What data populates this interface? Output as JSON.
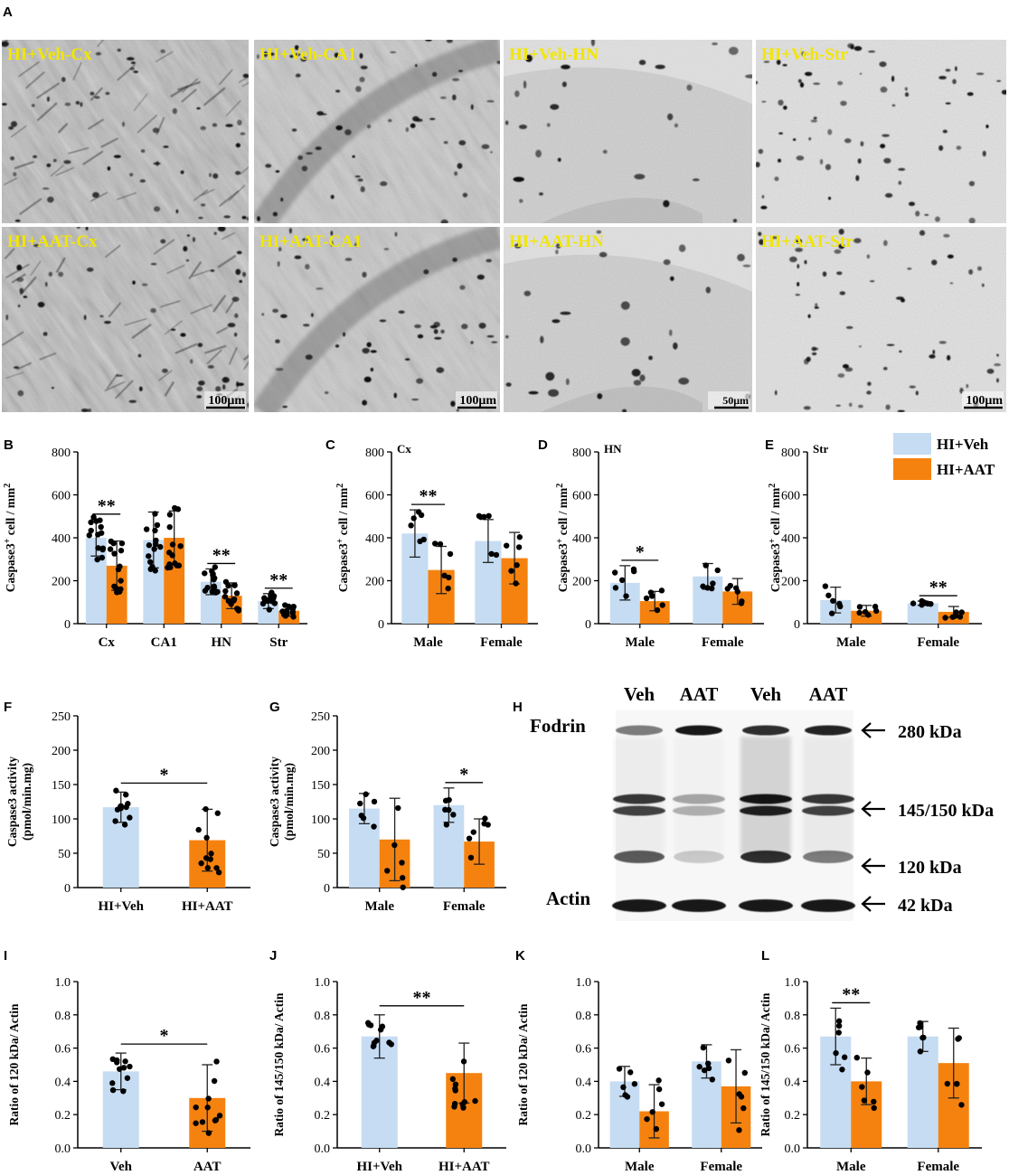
{
  "panel_labels": [
    "A",
    "B",
    "C",
    "D",
    "E",
    "F",
    "G",
    "H",
    "I",
    "J",
    "K",
    "L"
  ],
  "micrographs": [
    {
      "label": "HI+Veh-Cx",
      "scale": "",
      "style": "cx1"
    },
    {
      "label": "HI+Veh-CA1",
      "scale": "",
      "style": "ca1"
    },
    {
      "label": "HI+Veh-HN",
      "scale": "",
      "style": "hn1"
    },
    {
      "label": "HI+Veh-Str",
      "scale": "",
      "style": "str1"
    },
    {
      "label": "HI+AAT-Cx",
      "scale": "100μm",
      "style": "cx2"
    },
    {
      "label": "HI+AAT-CA1",
      "scale": "100μm",
      "style": "ca2"
    },
    {
      "label": "HI+AAT-HN",
      "scale": "50μm",
      "style": "hn2"
    },
    {
      "label": "HI+AAT-Str",
      "scale": "100μm",
      "style": "str2"
    }
  ],
  "colors": {
    "veh": "#c6dcf2",
    "aat": "#f5820f",
    "label_yellow": "#f2e600"
  },
  "legend": [
    {
      "label": "HI+Veh",
      "color": "#c6dcf2"
    },
    {
      "label": "HI+AAT",
      "color": "#f5820f"
    }
  ],
  "western_blot": {
    "panel": "H",
    "lanes": [
      "Veh",
      "AAT",
      "Veh",
      "AAT"
    ],
    "rows": [
      "Fodrin",
      "Actin"
    ],
    "bands": [
      "280 kDa",
      "145/150 kDa",
      "120 kDa",
      "42 kDa"
    ]
  },
  "chart_data": [
    {
      "panel": "B",
      "type": "bar",
      "ylabel": "Caspase3+ cell / mm2",
      "ylim": [
        0,
        800
      ],
      "yticks": [
        0,
        200,
        400,
        600,
        800
      ],
      "categories": [
        "Cx",
        "CA1",
        "HN",
        "Str"
      ],
      "series": [
        {
          "name": "HI+Veh",
          "values": [
            400,
            390,
            195,
            105
          ]
        },
        {
          "name": "HI+AAT",
          "values": [
            270,
            400,
            130,
            60
          ]
        }
      ],
      "errors": [
        [
          85,
          130,
          60,
          35
        ],
        [
          115,
          125,
          60,
          25
        ]
      ],
      "significance": [
        "**",
        "",
        "**",
        "**"
      ]
    },
    {
      "panel": "C",
      "type": "bar",
      "subtitle": "Cx",
      "ylabel": "Caspase3+ cell / mm2",
      "ylim": [
        0,
        800
      ],
      "yticks": [
        0,
        200,
        400,
        600,
        800
      ],
      "categories": [
        "Male",
        "Female"
      ],
      "series": [
        {
          "name": "HI+Veh",
          "values": [
            420,
            385
          ]
        },
        {
          "name": "HI+AAT",
          "values": [
            250,
            305
          ]
        }
      ],
      "errors": [
        [
          110,
          100
        ],
        [
          110,
          120
        ]
      ],
      "significance": [
        "**",
        ""
      ]
    },
    {
      "panel": "D",
      "type": "bar",
      "subtitle": "HN",
      "ylabel": "Caspase3+ cell / mm2",
      "ylim": [
        0,
        800
      ],
      "yticks": [
        0,
        200,
        400,
        600,
        800
      ],
      "categories": [
        "Male",
        "Female"
      ],
      "series": [
        {
          "name": "HI+Veh",
          "values": [
            190,
            220
          ]
        },
        {
          "name": "HI+AAT",
          "values": [
            105,
            150
          ]
        }
      ],
      "errors": [
        [
          80,
          60
        ],
        [
          45,
          60
        ]
      ],
      "significance": [
        "*",
        ""
      ]
    },
    {
      "panel": "E",
      "type": "bar",
      "subtitle": "Str",
      "ylabel": "Caspase3+ cell / mm2",
      "ylim": [
        0,
        800
      ],
      "yticks": [
        0,
        200,
        400,
        600,
        800
      ],
      "categories": [
        "Male",
        "Female"
      ],
      "series": [
        {
          "name": "HI+Veh",
          "values": [
            110,
            95
          ]
        },
        {
          "name": "HI+AAT",
          "values": [
            60,
            55
          ]
        }
      ],
      "errors": [
        [
          60,
          10
        ],
        [
          25,
          25
        ]
      ],
      "significance": [
        "",
        "**"
      ]
    },
    {
      "panel": "F",
      "type": "bar",
      "ylabel": "Caspase3 activity (pmol/min.mg)",
      "ylim": [
        0,
        250
      ],
      "yticks": [
        0,
        50,
        100,
        150,
        200,
        250
      ],
      "categories": [
        "HI+Veh",
        "HI+AAT"
      ],
      "grouped": false,
      "values": [
        117,
        69
      ],
      "errors": [
        22,
        45
      ],
      "significance": [
        "*"
      ]
    },
    {
      "panel": "G",
      "type": "bar",
      "ylabel": "Caspase3 activity (pmol/min.mg)",
      "ylim": [
        0,
        250
      ],
      "yticks": [
        0,
        50,
        100,
        150,
        200,
        250
      ],
      "categories": [
        "Male",
        "Female"
      ],
      "series": [
        {
          "name": "HI+Veh",
          "values": [
            115,
            120
          ]
        },
        {
          "name": "HI+AAT",
          "values": [
            70,
            67
          ]
        }
      ],
      "errors": [
        [
          22,
          25
        ],
        [
          60,
          33
        ]
      ],
      "significance": [
        "",
        "*"
      ]
    },
    {
      "panel": "I",
      "type": "bar",
      "ylabel": "Ratio of 120 kDa/ Actin",
      "ylim": [
        0,
        1.0
      ],
      "yticks": [
        "0.0",
        "0.2",
        "0.4",
        "0.6",
        "0.8",
        "1.0"
      ],
      "categories": [
        "Veh",
        "AAT"
      ],
      "grouped": false,
      "values": [
        0.46,
        0.3
      ],
      "errors": [
        0.11,
        0.2
      ],
      "significance": [
        "*"
      ]
    },
    {
      "panel": "J",
      "type": "bar",
      "ylabel": "Ratio of 145/150 kDa/ Actin",
      "ylim": [
        0,
        1.0
      ],
      "yticks": [
        "0.0",
        "0.2",
        "0.4",
        "0.6",
        "0.8",
        "1.0"
      ],
      "categories": [
        "HI+Veh",
        "HI+AAT"
      ],
      "grouped": false,
      "values": [
        0.67,
        0.45
      ],
      "errors": [
        0.13,
        0.18
      ],
      "significance": [
        "**"
      ]
    },
    {
      "panel": "K",
      "type": "bar",
      "ylabel": "Ratio of 120 kDa/ Actin",
      "ylim": [
        0,
        1.0
      ],
      "yticks": [
        "0.0",
        "0.2",
        "0.4",
        "0.6",
        "0.8",
        "1.0"
      ],
      "categories": [
        "Male",
        "Female"
      ],
      "series": [
        {
          "name": "HI+Veh",
          "values": [
            0.4,
            0.52
          ]
        },
        {
          "name": "HI+AAT",
          "values": [
            0.22,
            0.37
          ]
        }
      ],
      "errors": [
        [
          0.09,
          0.1
        ],
        [
          0.16,
          0.22
        ]
      ],
      "significance": [
        "",
        ""
      ]
    },
    {
      "panel": "L",
      "type": "bar",
      "ylabel": "Ratio of 145/150 kDa/ Actin",
      "ylim": [
        0,
        1.0
      ],
      "yticks": [
        "0.0",
        "0.2",
        "0.4",
        "0.6",
        "0.8",
        "1.0"
      ],
      "categories": [
        "Male",
        "Female"
      ],
      "series": [
        {
          "name": "HI+Veh",
          "values": [
            0.67,
            0.67
          ]
        },
        {
          "name": "HI+AAT",
          "values": [
            0.4,
            0.51
          ]
        }
      ],
      "errors": [
        [
          0.17,
          0.09
        ],
        [
          0.14,
          0.21
        ]
      ],
      "significance": [
        "**",
        ""
      ]
    }
  ]
}
